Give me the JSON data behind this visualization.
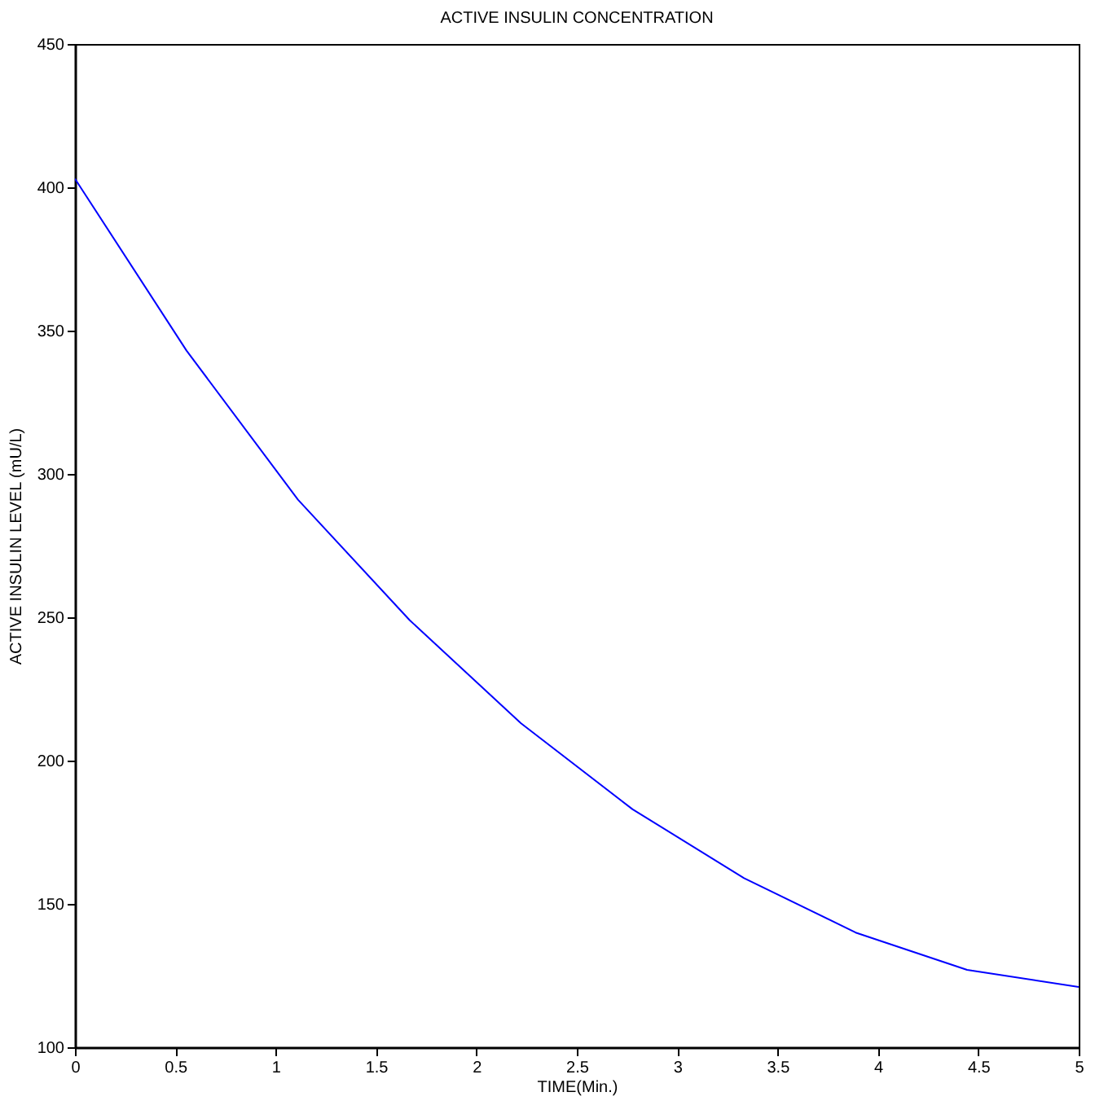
{
  "chart_data": {
    "type": "line",
    "title": "ACTIVE INSULIN CONCENTRATION",
    "xlabel": "TIME(Min.)",
    "ylabel": "ACTIVE INSULIN LEVEL (mU/L)",
    "x": [
      0,
      0.556,
      1.111,
      1.667,
      2.222,
      2.778,
      3.333,
      3.889,
      4.444,
      5
    ],
    "series": [
      {
        "color": "#0000ff",
        "values": [
          403,
          343,
          291,
          249,
          213,
          183,
          159,
          140,
          127,
          121
        ]
      }
    ],
    "xlim": [
      0,
      5
    ],
    "xticks": [
      0,
      0.5,
      1,
      1.5,
      2,
      2.5,
      3,
      3.5,
      4,
      4.5,
      5
    ],
    "ylim": [
      100,
      450
    ],
    "yticks": [
      100,
      150,
      200,
      250,
      300,
      350,
      400,
      450
    ],
    "grid": false,
    "marker": "none",
    "line_style": "solid"
  }
}
